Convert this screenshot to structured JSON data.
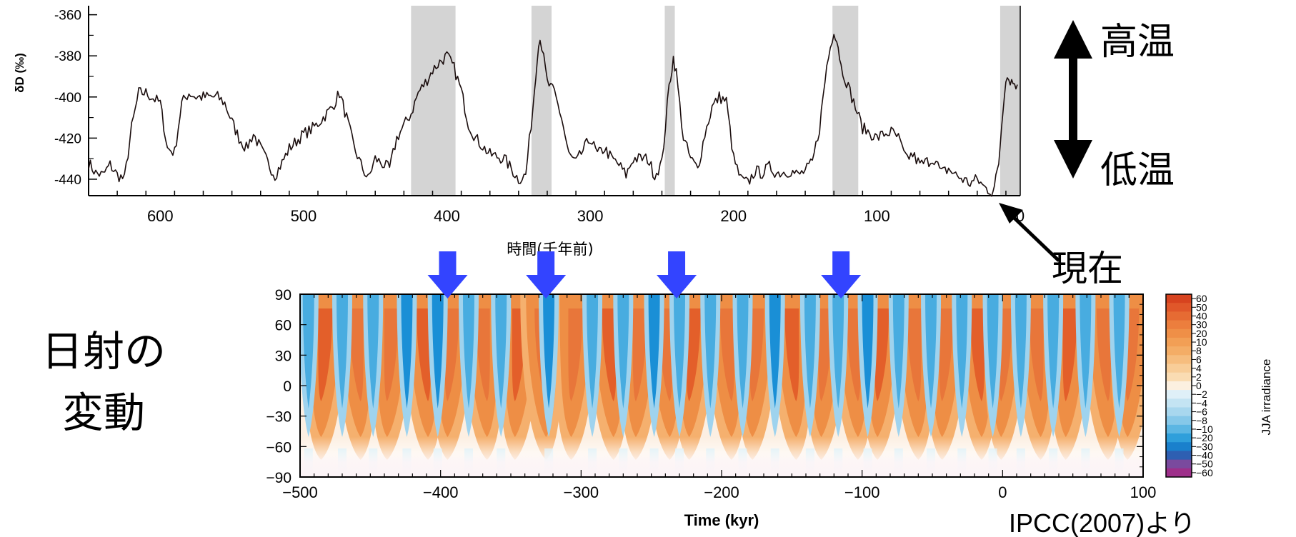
{
  "chart_data": [
    {
      "type": "line",
      "ylabel": "δD (‰)",
      "xlabel": "時間(千年前)",
      "x_ticks": [
        600,
        500,
        400,
        300,
        200,
        100,
        0
      ],
      "y_ticks": [
        -360,
        -380,
        -400,
        -420,
        -440
      ],
      "xlim": [
        650,
        0
      ],
      "ylim": [
        -448,
        -357
      ],
      "interglacial_shading": [
        [
          425,
          394
        ],
        [
          341,
          327
        ],
        [
          248,
          241
        ],
        [
          131,
          113
        ],
        [
          14,
          0
        ]
      ],
      "x": [
        650,
        645,
        640,
        635,
        630,
        625,
        620,
        615,
        610,
        600,
        595,
        590,
        585,
        580,
        575,
        570,
        560,
        555,
        550,
        545,
        540,
        535,
        530,
        525,
        520,
        515,
        510,
        500,
        495,
        490,
        485,
        480,
        475,
        470,
        465,
        460,
        455,
        450,
        440,
        435,
        425,
        420,
        415,
        410,
        405,
        400,
        395,
        390,
        385,
        380,
        370,
        360,
        350,
        345,
        340,
        337,
        335,
        330,
        325,
        320,
        315,
        310,
        300,
        295,
        290,
        285,
        280,
        275,
        270,
        260,
        255,
        250,
        245,
        242,
        240,
        235,
        230,
        225,
        220,
        215,
        210,
        205,
        200,
        195,
        190,
        185,
        180,
        175,
        170,
        160,
        155,
        150,
        145,
        140,
        135,
        130,
        127,
        125,
        120,
        115,
        110,
        100,
        95,
        90,
        85,
        80,
        75,
        70,
        60,
        55,
        50,
        45,
        40,
        35,
        30,
        25,
        20,
        18,
        15,
        12,
        10,
        8,
        5,
        2
      ],
      "y": [
        -432,
        -437,
        -438,
        -433,
        -438,
        -440,
        -415,
        -398,
        -398,
        -403,
        -425,
        -427,
        -403,
        -398,
        -400,
        -400,
        -400,
        -403,
        -412,
        -420,
        -425,
        -418,
        -425,
        -432,
        -438,
        -432,
        -425,
        -418,
        -416,
        -413,
        -409,
        -405,
        -398,
        -410,
        -424,
        -433,
        -440,
        -430,
        -435,
        -420,
        -408,
        -398,
        -393,
        -387,
        -383,
        -380,
        -386,
        -397,
        -413,
        -420,
        -428,
        -430,
        -440,
        -438,
        -405,
        -380,
        -370,
        -393,
        -398,
        -410,
        -428,
        -432,
        -420,
        -428,
        -425,
        -430,
        -433,
        -438,
        -430,
        -430,
        -438,
        -432,
        -395,
        -381,
        -388,
        -420,
        -430,
        -435,
        -418,
        -405,
        -400,
        -402,
        -430,
        -440,
        -442,
        -436,
        -437,
        -434,
        -437,
        -436,
        -438,
        -436,
        -432,
        -415,
        -385,
        -367,
        -375,
        -385,
        -395,
        -405,
        -415,
        -420,
        -418,
        -417,
        -420,
        -430,
        -428,
        -433,
        -430,
        -437,
        -435,
        -438,
        -440,
        -442,
        -440,
        -444,
        -446,
        -444,
        -432,
        -405,
        -390,
        -391,
        -393,
        -394
      ]
    },
    {
      "type": "heatmap",
      "xlabel": "Time (kyr)",
      "ylabel": "",
      "colorbar_label": "JJA irradiance",
      "x_ticks": [
        -500,
        -400,
        -300,
        -200,
        -100,
        0,
        100
      ],
      "y_ticks": [
        90,
        60,
        30,
        0,
        -30,
        -60,
        -90
      ],
      "xlim": [
        -500,
        100
      ],
      "ylim": [
        -90,
        90
      ],
      "colorbar_ticks": [
        "60",
        "50",
        "40",
        "30",
        "20",
        "10",
        "8",
        "6",
        "4",
        "2",
        "0",
        "−2",
        "−4",
        "−6",
        "−8",
        "−10",
        "−20",
        "−30",
        "−40",
        "−50",
        "−60"
      ],
      "colorbar_colors": [
        "#d7431f",
        "#e0572a",
        "#e66b33",
        "#ec7e3d",
        "#ef8f47",
        "#f29f55",
        "#f4ad66",
        "#f6bd7e",
        "#f8cd98",
        "#fadcb3",
        "#fcf0e0",
        "#dff0f8",
        "#c4e4f3",
        "#a8d7ee",
        "#86c8e9",
        "#5cb6e3",
        "#2f9fdb",
        "#1a80cc",
        "#2e5fb2",
        "#7a4a9e",
        "#9e2f8a"
      ],
      "peak_times": [
        -482,
        -460,
        -435,
        -412,
        -392,
        -370,
        -344,
        -328,
        -304,
        -280,
        -258,
        -240,
        -220,
        -196,
        -175,
        -150,
        -126,
        -106,
        -86,
        -63,
        -40,
        -18,
        2,
        24,
        48,
        72,
        92
      ],
      "trough_times": [
        -494,
        -470,
        -448,
        -424,
        -402,
        -380,
        -357,
        -323,
        -292,
        -270,
        -248,
        -230,
        -208,
        -185,
        -162,
        -137,
        -117,
        -96,
        -74,
        -51,
        -29,
        -7,
        13,
        36,
        59,
        83
      ]
    }
  ],
  "markers": {
    "blue_arrow_times": [
      -395,
      -325,
      -232,
      -115
    ]
  },
  "annotations": {
    "warm": "高温",
    "cold": "低温",
    "present": "現在",
    "insolation_line1": "日射の",
    "insolation_line2": "変動",
    "source": "IPCC(2007)より"
  },
  "colors": {
    "shading": "#d4d4d4",
    "line": "#1a0d0d",
    "arrow_blue": "#3344ff"
  }
}
